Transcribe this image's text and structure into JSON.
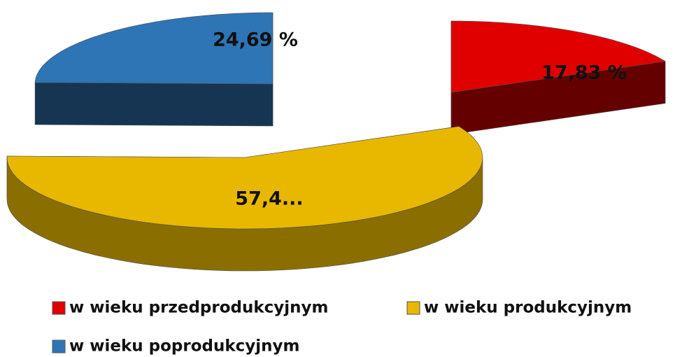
{
  "chart_data": {
    "type": "pie",
    "categories": [
      "w wieku przedprodukcyjnym",
      "w wieku produkcyjnym",
      "w wieku poprodukcyjnym"
    ],
    "values": [
      17.83,
      57.48,
      24.69
    ],
    "value_labels": [
      "17,83 %",
      "57,4...",
      "24,69 %"
    ],
    "colors": [
      "#e00000",
      "#e8b800",
      "#2e75b6"
    ]
  }
}
